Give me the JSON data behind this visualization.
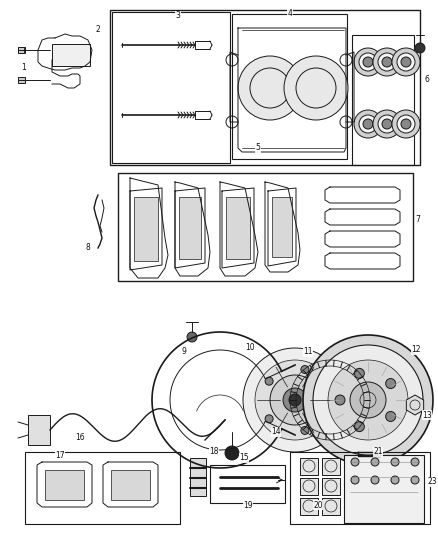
{
  "bg_color": "#ffffff",
  "line_color": "#1a1a1a",
  "fig_width": 4.38,
  "fig_height": 5.33,
  "dpi": 100
}
